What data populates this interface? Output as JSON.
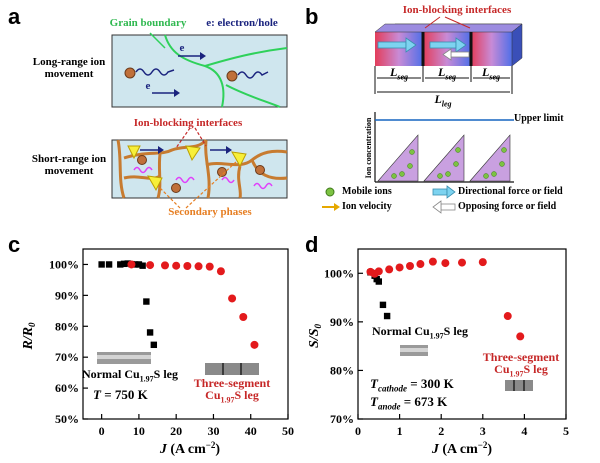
{
  "panel_a": {
    "letter": "a",
    "long_range_label": "Long-range ion movement",
    "short_range_label": "Short-range ion movement",
    "grain_boundary": "Grain boundary",
    "electron_hole": "e: electron/hole",
    "electron": "e",
    "ion_blocking_interfaces": "Ion-blocking interfaces",
    "secondary_phases": "Secondary phases"
  },
  "panel_b": {
    "letter": "b",
    "ion_blocking_interfaces": "Ion-blocking interfaces",
    "l_seg": "L",
    "seg_sub": "seg",
    "l_leg": "L",
    "leg_sub": "leg",
    "upper_limit": "Upper limit",
    "y_axis": "Ion concentration",
    "legend": {
      "mobile_ions": "Mobile ions",
      "ion_velocity": "Ion velocity",
      "directional_force": "Directional force or field",
      "opposing_force": "Opposing force or field"
    }
  },
  "panel_c": {
    "letter": "c",
    "normal_label": "Normal Cu",
    "normal_sub": "1.97",
    "normal_suffix": "S leg",
    "three_label": "Three-segment",
    "three_cu": "Cu",
    "three_sub": "1.97",
    "three_suffix": "S leg",
    "temp_T": "T",
    "temp_value": " = 750 K"
  },
  "panel_d": {
    "letter": "d",
    "normal_label": "Normal Cu",
    "normal_sub": "1.97",
    "normal_suffix": "S leg",
    "three_label": "Three-segment",
    "three_cu": "Cu",
    "three_sub": "1.97",
    "three_suffix": "S leg",
    "cathode_T": "T",
    "cathode_sub": "cathode",
    "cathode_value": " = 300 K",
    "anode_T": "T",
    "anode_sub": "anode",
    "anode_value": " = 673 K"
  },
  "chart_data": [
    {
      "type": "scatter",
      "title": "",
      "xlabel": "J (A cm⁻²)",
      "ylabel": "R/R₀",
      "xlim": [
        -5,
        50
      ],
      "ylim": [
        50,
        105
      ],
      "xticks": [
        0,
        10,
        20,
        30,
        40,
        50
      ],
      "ytick_labels": [
        "50%",
        "60%",
        "70%",
        "80%",
        "90%",
        "100%"
      ],
      "yticks": [
        50,
        60,
        70,
        80,
        90,
        100
      ],
      "series": [
        {
          "name": "Normal Cu1.97S leg",
          "color": "#000000",
          "marker": "square",
          "x": [
            0,
            2,
            5,
            6,
            7,
            8,
            9,
            10,
            11,
            12,
            13,
            14
          ],
          "y": [
            100,
            100,
            100,
            100.2,
            100.3,
            100.1,
            100,
            100,
            99.6,
            88,
            78,
            74
          ]
        },
        {
          "name": "Three-segment Cu1.97S leg",
          "color": "#e31a1c",
          "marker": "circle",
          "x": [
            8,
            13,
            17,
            20,
            23,
            26,
            29,
            32,
            35,
            38,
            41
          ],
          "y": [
            100,
            99.8,
            99.7,
            99.6,
            99.5,
            99.4,
            99.3,
            97.8,
            89,
            83,
            74
          ]
        }
      ]
    },
    {
      "type": "scatter",
      "title": "",
      "xlabel": "J (A cm⁻²)",
      "ylabel": "S/S₀",
      "xlim": [
        0,
        5
      ],
      "ylim": [
        70,
        105
      ],
      "xticks": [
        0,
        1,
        2,
        3,
        4,
        5
      ],
      "ytick_labels": [
        "70%",
        "80%",
        "90%",
        "100%"
      ],
      "yticks": [
        70,
        80,
        90,
        100
      ],
      "series": [
        {
          "name": "Normal Cu1.97S leg",
          "color": "#000000",
          "marker": "square",
          "x": [
            0.3,
            0.4,
            0.45,
            0.5,
            0.6,
            0.7
          ],
          "y": [
            100.2,
            99.5,
            98.8,
            98.3,
            93.5,
            91.2
          ]
        },
        {
          "name": "Three-segment Cu1.97S leg",
          "color": "#e31a1c",
          "marker": "circle",
          "x": [
            0.3,
            0.4,
            0.5,
            0.75,
            1.0,
            1.25,
            1.5,
            1.8,
            2.1,
            2.5,
            3.0,
            3.6,
            3.9
          ],
          "y": [
            100.3,
            99.9,
            100.4,
            100.8,
            101.2,
            101.5,
            101.9,
            102.4,
            102.1,
            102.2,
            102.3,
            91.2,
            87.0
          ]
        }
      ]
    }
  ]
}
